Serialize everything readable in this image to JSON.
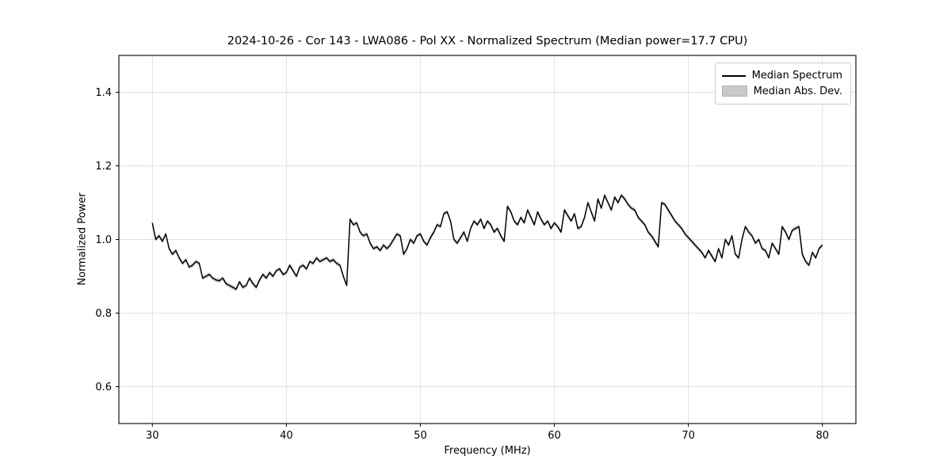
{
  "figure": {
    "title": "2024-10-26 - Cor 143 - LWA086 - Pol XX - Normalized Spectrum (Median power=17.7 CPU)",
    "xlabel": "Frequency (MHz)",
    "ylabel": "Normalized Power"
  },
  "legend": {
    "entries": [
      {
        "label": "Median Spectrum",
        "type": "line",
        "color": "#000000"
      },
      {
        "label": "Median Abs. Dev.",
        "type": "patch",
        "color": "#c9c9c9"
      }
    ]
  },
  "chart_data": {
    "type": "line",
    "title": "2024-10-26 - Cor 143 - LWA086 - Pol XX - Normalized Spectrum (Median power=17.7 CPU)",
    "xlabel": "Frequency (MHz)",
    "ylabel": "Normalized Power",
    "xlim": [
      27.5,
      82.5
    ],
    "ylim": [
      0.5,
      1.5
    ],
    "xticks": [
      30,
      40,
      50,
      60,
      70,
      80
    ],
    "yticks": [
      0.6,
      0.8,
      1.0,
      1.2,
      1.4
    ],
    "grid": true,
    "legend_position": "upper right",
    "colors": {
      "line": "#000000",
      "band": "#c9c9c9",
      "grid": "#e0e0e0",
      "frame": "#000000"
    },
    "series": [
      {
        "name": "Median Spectrum",
        "x_start": 30.0,
        "x_step": 0.25,
        "values": [
          1.045,
          1.0,
          1.01,
          0.995,
          1.015,
          0.975,
          0.96,
          0.97,
          0.95,
          0.935,
          0.945,
          0.925,
          0.93,
          0.94,
          0.935,
          0.895,
          0.9,
          0.905,
          0.895,
          0.89,
          0.888,
          0.895,
          0.88,
          0.875,
          0.87,
          0.865,
          0.885,
          0.87,
          0.875,
          0.895,
          0.88,
          0.87,
          0.89,
          0.905,
          0.895,
          0.91,
          0.9,
          0.915,
          0.92,
          0.905,
          0.91,
          0.93,
          0.915,
          0.9,
          0.925,
          0.93,
          0.92,
          0.94,
          0.935,
          0.95,
          0.94,
          0.945,
          0.95,
          0.94,
          0.945,
          0.935,
          0.93,
          0.9,
          0.875,
          1.055,
          1.04,
          1.045,
          1.02,
          1.01,
          1.015,
          0.99,
          0.975,
          0.98,
          0.97,
          0.985,
          0.975,
          0.985,
          1.0,
          1.015,
          1.01,
          0.96,
          0.975,
          1.0,
          0.99,
          1.01,
          1.015,
          0.995,
          0.985,
          1.005,
          1.02,
          1.04,
          1.035,
          1.07,
          1.075,
          1.05,
          1.0,
          0.99,
          1.005,
          1.02,
          0.995,
          1.03,
          1.05,
          1.04,
          1.055,
          1.03,
          1.05,
          1.04,
          1.02,
          1.03,
          1.01,
          0.995,
          1.09,
          1.075,
          1.05,
          1.04,
          1.06,
          1.045,
          1.08,
          1.06,
          1.04,
          1.075,
          1.055,
          1.04,
          1.05,
          1.03,
          1.045,
          1.035,
          1.02,
          1.08,
          1.065,
          1.05,
          1.07,
          1.03,
          1.035,
          1.06,
          1.1,
          1.075,
          1.05,
          1.11,
          1.085,
          1.12,
          1.1,
          1.08,
          1.115,
          1.1,
          1.12,
          1.11,
          1.095,
          1.085,
          1.08,
          1.06,
          1.05,
          1.04,
          1.02,
          1.01,
          0.995,
          0.98,
          1.1,
          1.095,
          1.08,
          1.065,
          1.05,
          1.04,
          1.03,
          1.015,
          1.005,
          0.995,
          0.985,
          0.975,
          0.965,
          0.95,
          0.97,
          0.955,
          0.94,
          0.975,
          0.95,
          1.0,
          0.985,
          1.01,
          0.96,
          0.95,
          1.0,
          1.035,
          1.02,
          1.01,
          0.99,
          1.0,
          0.975,
          0.97,
          0.95,
          0.99,
          0.975,
          0.96,
          1.035,
          1.02,
          1.0,
          1.025,
          1.03,
          1.035,
          0.96,
          0.94,
          0.93,
          0.965,
          0.95,
          0.975,
          0.985
        ],
        "mad_halfwidth": 0.006
      }
    ]
  }
}
